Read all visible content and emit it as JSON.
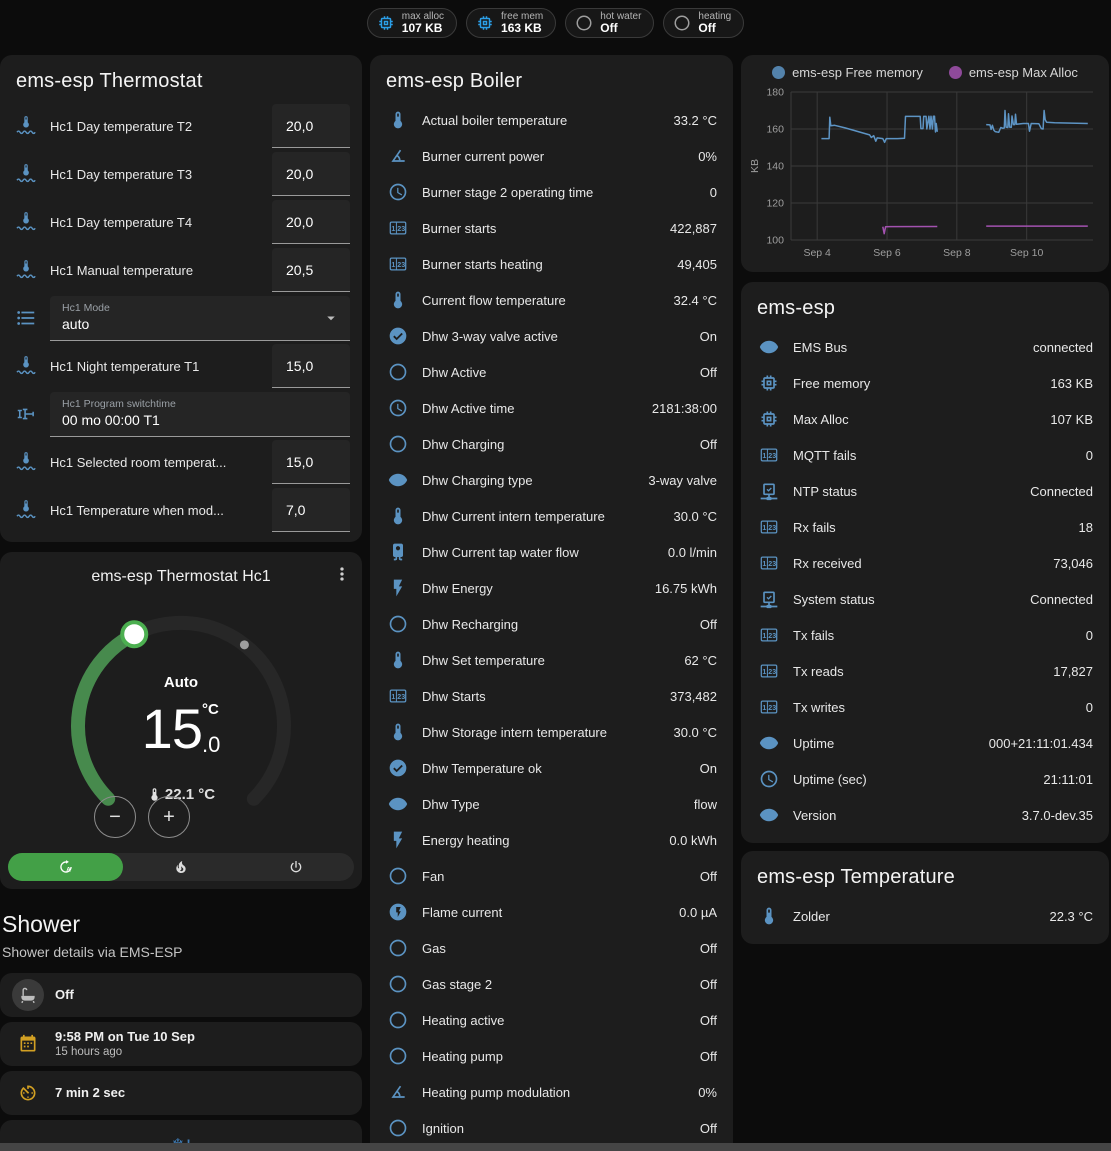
{
  "colors": {
    "icon_blue": "#5b93c2",
    "chip_blue": "#2b9fe8",
    "icon_gray": "#9e9e9e",
    "amber": "#d2a023",
    "green_button": "#43a047",
    "arc_green": "#478a4d",
    "knob_ring": "#4caf50",
    "snowflake_blue": "#3f7cb6"
  },
  "chips": [
    {
      "icon": "chip-icon",
      "icon_color": "#2b9fe8",
      "label": "max alloc",
      "value": "107 KB"
    },
    {
      "icon": "chip-icon",
      "icon_color": "#2b9fe8",
      "label": "free mem",
      "value": "163 KB"
    },
    {
      "icon": "circle-icon",
      "icon_color": "#9e9e9e",
      "label": "hot water",
      "value": "Off"
    },
    {
      "icon": "circle-icon",
      "icon_color": "#9e9e9e",
      "label": "heating",
      "value": "Off"
    }
  ],
  "thermostat_card": {
    "title": "ems-esp Thermostat",
    "rows": [
      {
        "type": "number",
        "icon": "thermometer-waves-icon",
        "label": "Hc1 Day temperature T2",
        "value": "20,0"
      },
      {
        "type": "number",
        "icon": "thermometer-waves-icon",
        "label": "Hc1 Day temperature T3",
        "value": "20,0"
      },
      {
        "type": "number",
        "icon": "thermometer-waves-icon",
        "label": "Hc1 Day temperature T4",
        "value": "20,0"
      },
      {
        "type": "number",
        "icon": "thermometer-waves-icon",
        "label": "Hc1 Manual temperature",
        "value": "20,5"
      },
      {
        "type": "select",
        "icon": "list-icon",
        "label": "Hc1 Mode",
        "value": "auto"
      },
      {
        "type": "number",
        "icon": "thermometer-waves-icon",
        "label": "Hc1 Night temperature T1",
        "value": "15,0"
      },
      {
        "type": "text",
        "icon": "valve-icon",
        "label": "Hc1 Program switchtime",
        "value": "00 mo 00:00 T1"
      },
      {
        "type": "number",
        "icon": "thermometer-waves-icon",
        "label": "Hc1 Selected room temperat...",
        "value": "15,0"
      },
      {
        "type": "number",
        "icon": "thermometer-waves-icon",
        "label": "Hc1 Temperature when mod...",
        "value": "7,0"
      }
    ]
  },
  "dial_card": {
    "title": "ems-esp Thermostat Hc1",
    "mode_label": "Auto",
    "target_temp_int": "15",
    "target_temp_unit": "°C",
    "target_temp_dec": ".0",
    "current_temp": "22.1 °C",
    "minus_label": "−",
    "plus_label": "+",
    "mode_buttons": [
      {
        "icon": "auto-mode-icon",
        "active": true
      },
      {
        "icon": "flame-icon",
        "active": false
      },
      {
        "icon": "power-icon",
        "active": false
      }
    ]
  },
  "shower": {
    "title": "Shower",
    "subtitle": "Shower details via EMS-ESP",
    "tiles": [
      {
        "icon": "bathtub-icon",
        "icon_color": "#bdbdbd",
        "circle_bg": true,
        "primary": "Off",
        "secondary": ""
      },
      {
        "icon": "calendar-icon",
        "icon_color": "#d2a023",
        "circle_bg": false,
        "primary": "9:58 PM on Tue 10 Sep",
        "secondary": "15 hours ago"
      },
      {
        "icon": "timer-icon",
        "icon_color": "#d2a023",
        "circle_bg": false,
        "primary": "7 min 2 sec",
        "secondary": ""
      },
      {
        "icon": "snowflake-alert-icon",
        "icon_color": "#3f7cb6",
        "circle_bg": false,
        "primary": "",
        "secondary": "",
        "centered": true
      }
    ]
  },
  "boiler_card": {
    "title": "ems-esp Boiler",
    "rows": [
      {
        "icon": "thermometer-icon",
        "label": "Actual boiler temperature",
        "value": "33.2 °C"
      },
      {
        "icon": "gauge-icon",
        "label": "Burner current power",
        "value": "0%"
      },
      {
        "icon": "clock-icon",
        "label": "Burner stage 2 operating time",
        "value": "0"
      },
      {
        "icon": "counter-icon",
        "label": "Burner starts",
        "value": "422,887"
      },
      {
        "icon": "counter-icon",
        "label": "Burner starts heating",
        "value": "49,405"
      },
      {
        "icon": "thermometer-icon",
        "label": "Current flow temperature",
        "value": "32.4 °C"
      },
      {
        "icon": "check-circle-icon",
        "label": "Dhw 3-way valve active",
        "value": "On"
      },
      {
        "icon": "circle-icon",
        "label": "Dhw Active",
        "value": "Off"
      },
      {
        "icon": "clock-icon",
        "label": "Dhw Active time",
        "value": "2181:38:00"
      },
      {
        "icon": "circle-icon",
        "label": "Dhw Charging",
        "value": "Off"
      },
      {
        "icon": "eye-icon",
        "label": "Dhw Charging type",
        "value": "3-way valve"
      },
      {
        "icon": "thermometer-icon",
        "label": "Dhw Current intern temperature",
        "value": "30.0 °C"
      },
      {
        "icon": "water-boiler-icon",
        "label": "Dhw Current tap water flow",
        "value": "0.0 l/min"
      },
      {
        "icon": "lightning-icon",
        "label": "Dhw Energy",
        "value": "16.75 kWh"
      },
      {
        "icon": "circle-icon",
        "label": "Dhw Recharging",
        "value": "Off"
      },
      {
        "icon": "thermometer-icon",
        "label": "Dhw Set temperature",
        "value": "62 °C"
      },
      {
        "icon": "counter-icon",
        "label": "Dhw Starts",
        "value": "373,482"
      },
      {
        "icon": "thermometer-icon",
        "label": "Dhw Storage intern temperature",
        "value": "30.0 °C"
      },
      {
        "icon": "check-circle-icon",
        "label": "Dhw Temperature ok",
        "value": "On"
      },
      {
        "icon": "eye-icon",
        "label": "Dhw Type",
        "value": "flow"
      },
      {
        "icon": "lightning-icon",
        "label": "Energy heating",
        "value": "0.0 kWh"
      },
      {
        "icon": "circle-icon",
        "label": "Fan",
        "value": "Off"
      },
      {
        "icon": "lightning-circle-icon",
        "label": "Flame current",
        "value": "0.0 µA"
      },
      {
        "icon": "circle-icon",
        "label": "Gas",
        "value": "Off"
      },
      {
        "icon": "circle-icon",
        "label": "Gas stage 2",
        "value": "Off"
      },
      {
        "icon": "circle-icon",
        "label": "Heating active",
        "value": "Off"
      },
      {
        "icon": "circle-icon",
        "label": "Heating pump",
        "value": "Off"
      },
      {
        "icon": "gauge-icon",
        "label": "Heating pump modulation",
        "value": "0%"
      },
      {
        "icon": "circle-icon",
        "label": "Ignition",
        "value": "Off"
      }
    ]
  },
  "chart_data": {
    "type": "line",
    "title": "",
    "xlabel": "",
    "ylabel": "KB",
    "ylim": [
      100,
      180
    ],
    "yticks": [
      100,
      120,
      140,
      160,
      180
    ],
    "xlim": [
      3.25,
      11.9
    ],
    "xticks": [
      {
        "x": 4,
        "label": "Sep 4"
      },
      {
        "x": 6,
        "label": "Sep 6"
      },
      {
        "x": 8,
        "label": "Sep 8"
      },
      {
        "x": 10,
        "label": "Sep 10"
      }
    ],
    "grid": true,
    "legend_position": "top",
    "series": [
      {
        "name": "ems-esp Free memory",
        "color": "#5d94c4",
        "points": [
          [
            4.12,
            154.8
          ],
          [
            4.34,
            154.8
          ],
          [
            4.36,
            166.3
          ],
          [
            4.39,
            161.8
          ],
          [
            4.5,
            162
          ],
          [
            4.8,
            160.6
          ],
          [
            5.1,
            159
          ],
          [
            5.35,
            157.6
          ],
          [
            5.5,
            156.8
          ],
          [
            5.55,
            155.4
          ],
          [
            5.62,
            156.4
          ],
          [
            5.68,
            153.4
          ],
          [
            5.72,
            155.2
          ],
          [
            5.88,
            154.8
          ],
          [
            5.93,
            152.8
          ],
          [
            5.98,
            154.8
          ],
          [
            6.3,
            154.8
          ],
          [
            6.5,
            155
          ],
          [
            6.53,
            166.8
          ],
          [
            6.95,
            166.8
          ],
          [
            6.97,
            160.2
          ],
          [
            7.03,
            160.2
          ],
          [
            7.05,
            166.8
          ],
          [
            7.12,
            166.8
          ],
          [
            7.14,
            160
          ],
          [
            7.2,
            166.9
          ],
          [
            7.23,
            160
          ],
          [
            7.26,
            166.9
          ],
          [
            7.3,
            160
          ],
          [
            7.33,
            166.9
          ],
          [
            7.36,
            166.9
          ],
          [
            7.39,
            158.4
          ],
          [
            7.41,
            163
          ],
          [
            7.44,
            158.5
          ],
          null,
          [
            8.84,
            162.4
          ],
          [
            8.95,
            162.2
          ],
          [
            8.98,
            159.8
          ],
          [
            9.02,
            162
          ],
          [
            9.06,
            159.4
          ],
          [
            9.1,
            158.6
          ],
          [
            9.2,
            158.2
          ],
          [
            9.26,
            160.8
          ],
          [
            9.32,
            160.4
          ],
          [
            9.36,
            160.6
          ],
          [
            9.38,
            170
          ],
          [
            9.41,
            161
          ],
          [
            9.46,
            160.8
          ],
          [
            9.48,
            168.2
          ],
          [
            9.51,
            161
          ],
          [
            9.56,
            160.9
          ],
          [
            9.58,
            167
          ],
          [
            9.62,
            162.4
          ],
          [
            9.66,
            162.4
          ],
          [
            9.68,
            168
          ],
          [
            9.71,
            162.6
          ],
          [
            9.9,
            163
          ],
          [
            10.05,
            163
          ],
          [
            10.08,
            158.8
          ],
          [
            10.13,
            163
          ],
          [
            10.35,
            162.8
          ],
          [
            10.42,
            160.2
          ],
          [
            10.47,
            160
          ],
          [
            10.5,
            170
          ],
          [
            10.53,
            165
          ],
          [
            10.57,
            163.6
          ],
          [
            10.8,
            163.4
          ],
          [
            11.75,
            163
          ]
        ]
      },
      {
        "name": "ems-esp Max Alloc",
        "color": "#a352b0",
        "points": [
          [
            5.88,
            107.2
          ],
          [
            5.92,
            103.4
          ],
          [
            5.96,
            107.2
          ],
          [
            7.44,
            107.3
          ],
          null,
          [
            8.84,
            107.5
          ],
          [
            11.75,
            107.5
          ]
        ]
      }
    ]
  },
  "emsesp_card": {
    "title": "ems-esp",
    "rows": [
      {
        "icon": "eye-icon",
        "label": "EMS Bus",
        "value": "connected"
      },
      {
        "icon": "chip-icon",
        "label": "Free memory",
        "value": "163 KB"
      },
      {
        "icon": "chip-icon",
        "label": "Max Alloc",
        "value": "107 KB"
      },
      {
        "icon": "counter-icon",
        "label": "MQTT fails",
        "value": "0"
      },
      {
        "icon": "network-icon",
        "label": "NTP status",
        "value": "Connected"
      },
      {
        "icon": "counter-icon",
        "label": "Rx fails",
        "value": "18"
      },
      {
        "icon": "counter-icon",
        "label": "Rx received",
        "value": "73,046"
      },
      {
        "icon": "network-icon",
        "label": "System status",
        "value": "Connected"
      },
      {
        "icon": "counter-icon",
        "label": "Tx fails",
        "value": "0"
      },
      {
        "icon": "counter-icon",
        "label": "Tx reads",
        "value": "17,827"
      },
      {
        "icon": "counter-icon",
        "label": "Tx writes",
        "value": "0"
      },
      {
        "icon": "eye-icon",
        "label": "Uptime",
        "value": "000+21:11:01.434"
      },
      {
        "icon": "clock-icon",
        "label": "Uptime (sec)",
        "value": "21:11:01"
      },
      {
        "icon": "eye-icon",
        "label": "Version",
        "value": "3.7.0-dev.35"
      }
    ]
  },
  "temperature_card": {
    "title": "ems-esp Temperature",
    "rows": [
      {
        "icon": "thermometer-icon",
        "label": "Zolder",
        "value": "22.3 °C"
      }
    ]
  }
}
